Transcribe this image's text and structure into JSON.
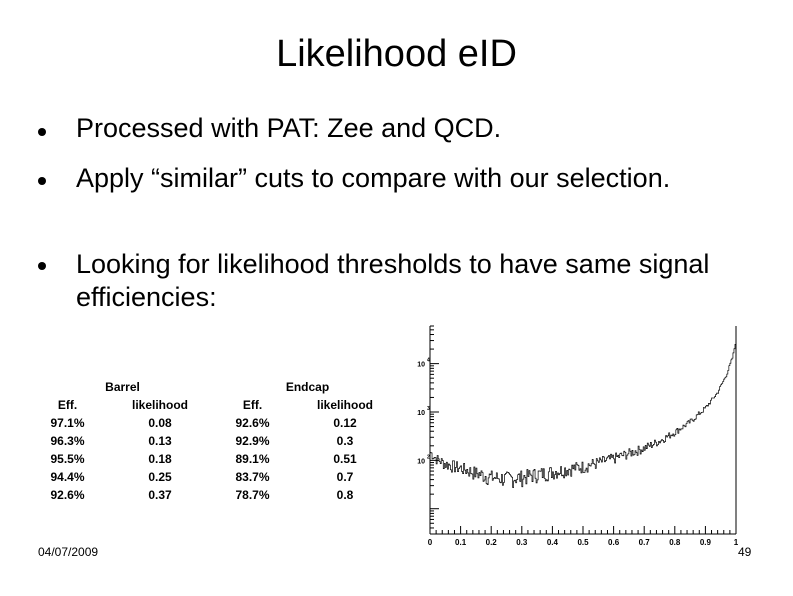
{
  "slide": {
    "title": "Likelihood eID",
    "bullets": [
      {
        "text": "Processed with PAT: Zee and QCD."
      },
      {
        "text": "Apply “similar” cuts to compare with our selection."
      },
      {
        "text": "Looking for likelihood thresholds to have same signal efficiencies:"
      }
    ],
    "footer_date": "04/07/2009",
    "page_number": "49"
  },
  "table": {
    "group_barrel": "Barrel",
    "group_endcap": "Endcap",
    "headers": [
      "Eff.",
      "likelihood",
      "Eff.",
      "likelihood"
    ],
    "rows": [
      [
        "97.1%",
        "0.08",
        "92.6%",
        "0.12"
      ],
      [
        "96.3%",
        "0.13",
        "92.9%",
        "0.3"
      ],
      [
        "95.5%",
        "0.18",
        "89.1%",
        "0.51"
      ],
      [
        "94.4%",
        "0.25",
        "83.7%",
        "0.7"
      ],
      [
        "92.6%",
        "0.37",
        "78.7%",
        "0.8"
      ]
    ]
  },
  "chart_data": {
    "type": "line",
    "title": "",
    "xlabel": "",
    "ylabel": "",
    "xlim": [
      0,
      1
    ],
    "log_y": true,
    "ylim": [
      3,
      60000
    ],
    "x_ticks": [
      "0",
      "0.1",
      "0.2",
      "0.3",
      "0.4",
      "0.5",
      "0.6",
      "0.7",
      "0.8",
      "0.9",
      "1"
    ],
    "y_ticks": [
      "10",
      "10",
      "10"
    ],
    "y_tick_exponents": [
      "4",
      "3",
      "2"
    ],
    "y_tick_values": [
      10000,
      1000,
      100
    ],
    "series": [
      {
        "x": [
          0.0,
          0.02,
          0.05,
          0.1,
          0.15,
          0.2,
          0.25,
          0.3,
          0.35,
          0.4,
          0.45,
          0.5,
          0.55,
          0.6,
          0.65,
          0.7,
          0.75,
          0.8,
          0.85,
          0.9,
          0.94,
          0.97,
          0.99,
          1.0
        ],
        "y": [
          150,
          110,
          85,
          70,
          55,
          45,
          42,
          45,
          52,
          58,
          66,
          75,
          90,
          110,
          140,
          180,
          250,
          380,
          620,
          1200,
          2500,
          6000,
          14000,
          30000
        ]
      }
    ]
  }
}
